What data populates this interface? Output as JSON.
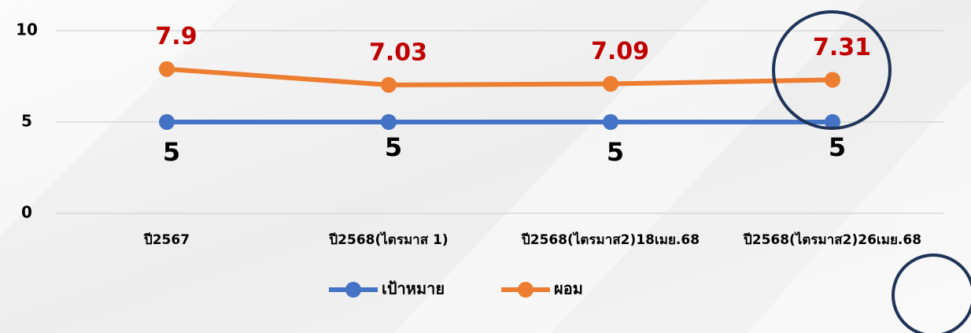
{
  "chart_data": {
    "type": "line",
    "categories": [
      "ปี2567",
      "ปี2568(ไตรมาส 1)",
      "ปี2568(ไตรมาส2)18เมย.68",
      "ปี2568(ไตรมาส2)26เมย.68"
    ],
    "series": [
      {
        "name": "เป้าหมาย",
        "color": "#4472c4",
        "values": [
          5,
          5,
          5,
          5
        ]
      },
      {
        "name": "ผอม",
        "color": "#ed7d31",
        "values": [
          7.9,
          7.03,
          7.09,
          7.31
        ]
      }
    ],
    "ylim": [
      0,
      10
    ],
    "yticks": [
      0,
      5,
      10
    ],
    "grid": true,
    "legend": "bottom"
  }
}
